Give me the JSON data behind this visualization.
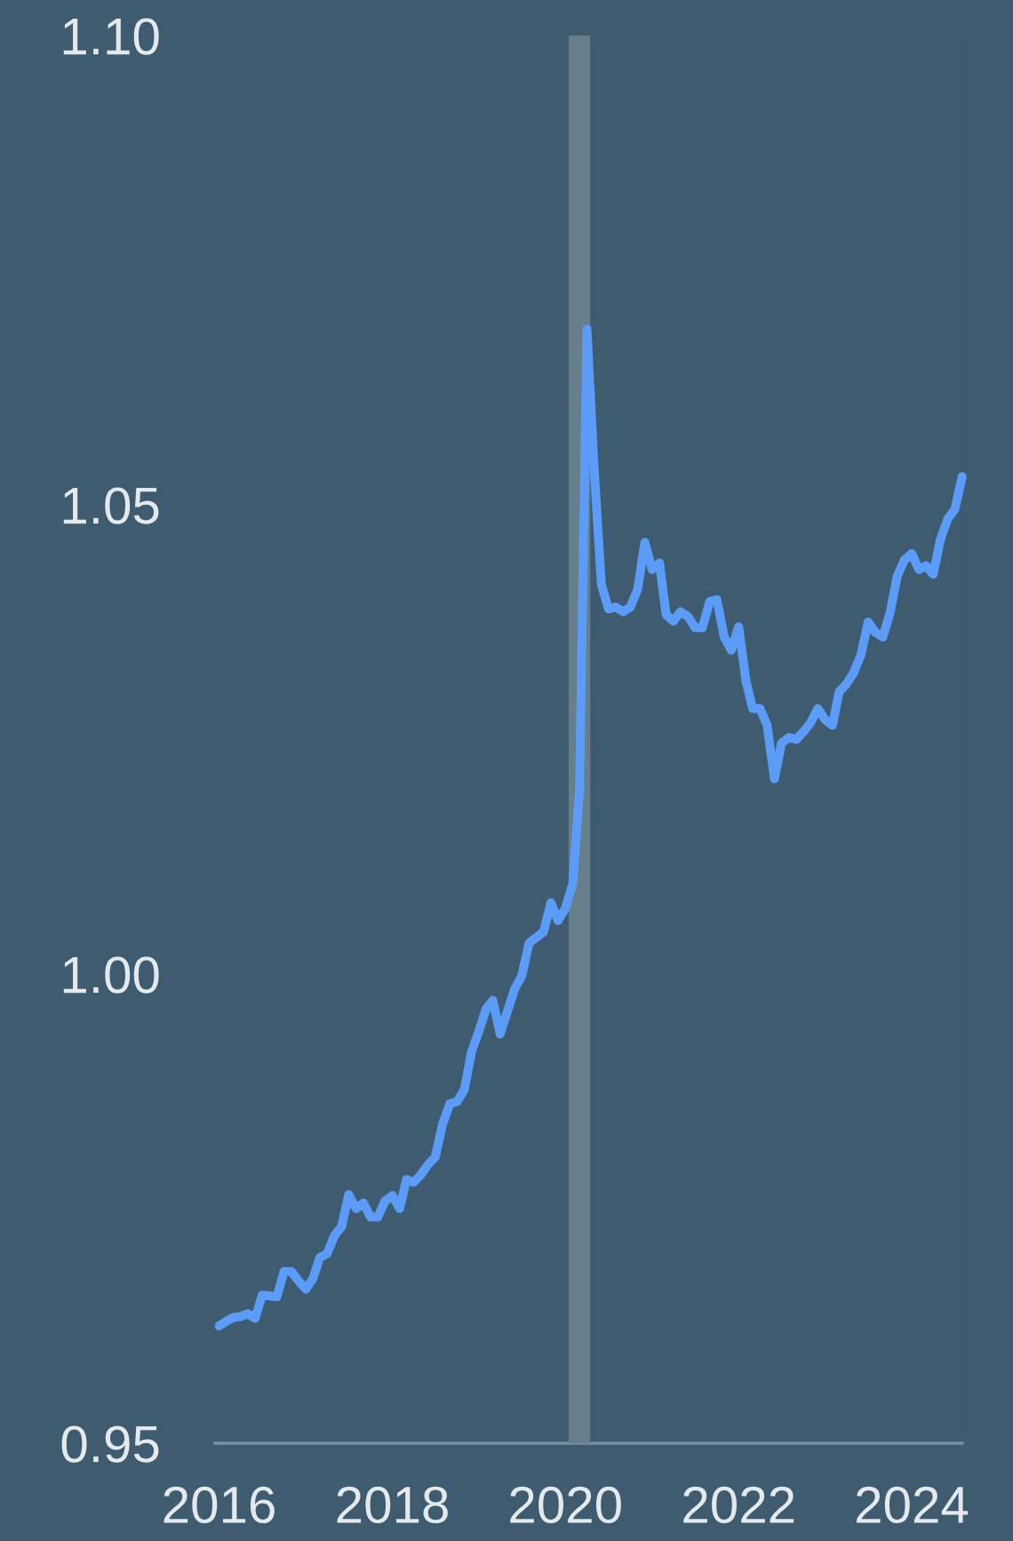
{
  "chart_data": {
    "type": "line",
    "x": [
      "2016-01",
      "2016-02",
      "2016-03",
      "2016-04",
      "2016-05",
      "2016-06",
      "2016-07",
      "2016-08",
      "2016-09",
      "2016-10",
      "2016-11",
      "2016-12",
      "2017-01",
      "2017-02",
      "2017-03",
      "2017-04",
      "2017-05",
      "2017-06",
      "2017-07",
      "2017-08",
      "2017-09",
      "2017-10",
      "2017-11",
      "2017-12",
      "2018-01",
      "2018-02",
      "2018-03",
      "2018-04",
      "2018-05",
      "2018-06",
      "2018-07",
      "2018-08",
      "2018-09",
      "2018-10",
      "2018-11",
      "2018-12",
      "2019-01",
      "2019-02",
      "2019-03",
      "2019-04",
      "2019-05",
      "2019-06",
      "2019-07",
      "2019-08",
      "2019-09",
      "2019-10",
      "2019-11",
      "2019-12",
      "2020-01",
      "2020-02",
      "2020-03",
      "2020-04",
      "2020-05",
      "2020-06",
      "2020-07",
      "2020-08",
      "2020-09",
      "2020-10",
      "2020-11",
      "2020-12",
      "2021-01",
      "2021-02",
      "2021-03",
      "2021-04",
      "2021-05",
      "2021-06",
      "2021-07",
      "2021-08",
      "2021-09",
      "2021-10",
      "2021-11",
      "2021-12",
      "2022-01",
      "2022-02",
      "2022-03",
      "2022-04",
      "2022-05",
      "2022-06",
      "2022-07",
      "2022-08",
      "2022-09",
      "2022-10",
      "2022-11",
      "2022-12",
      "2023-01",
      "2023-02",
      "2023-03",
      "2023-04",
      "2023-05",
      "2023-06",
      "2023-07",
      "2023-08",
      "2023-09",
      "2023-10",
      "2023-11",
      "2023-12",
      "2024-01",
      "2024-02",
      "2024-03",
      "2024-04",
      "2024-05",
      "2024-06",
      "2024-07",
      "2024-08"
    ],
    "series": [
      {
        "color": "#5b9cf9",
        "values": [
          0.9625,
          0.963,
          0.9634,
          0.9635,
          0.9638,
          0.9633,
          0.9658,
          0.9657,
          0.9656,
          0.9683,
          0.9683,
          0.9673,
          0.9664,
          0.9676,
          0.9698,
          0.9702,
          0.9721,
          0.9731,
          0.9765,
          0.975,
          0.9756,
          0.9741,
          0.9741,
          0.9758,
          0.9764,
          0.975,
          0.9781,
          0.9778,
          0.9786,
          0.9797,
          0.9805,
          0.984,
          0.9862,
          0.9864,
          0.9877,
          0.9917,
          0.9939,
          0.9963,
          0.9972,
          0.9936,
          0.996,
          0.9984,
          0.9998,
          1.0033,
          1.0039,
          1.0045,
          1.0076,
          1.0057,
          1.007,
          1.0096,
          1.0198,
          1.0687,
          1.054,
          1.0415,
          1.0389,
          1.0391,
          1.0386,
          1.0391,
          1.041,
          1.046,
          1.0431,
          1.0438,
          1.0383,
          1.0376,
          1.0386,
          1.0381,
          1.0369,
          1.0369,
          1.0397,
          1.0399,
          1.0359,
          1.0345,
          1.037,
          1.0312,
          1.0283,
          1.0283,
          1.0265,
          1.0208,
          1.0246,
          1.0252,
          1.025,
          1.0258,
          1.0268,
          1.0283,
          1.0271,
          1.0265,
          1.0301,
          1.0309,
          1.0321,
          1.034,
          1.0375,
          1.0364,
          1.0359,
          1.0384,
          1.0424,
          1.0441,
          1.0448,
          1.0431,
          1.0435,
          1.0426,
          1.0463,
          1.0485,
          1.0495,
          1.053
        ]
      }
    ],
    "xlim": [
      "2015-12-15",
      "2024-08-01"
    ],
    "xticks": [
      {
        "value": "2016-01-01",
        "label": "2016"
      },
      {
        "value": "2018-01-01",
        "label": "2018"
      },
      {
        "value": "2020-01-01",
        "label": "2020"
      },
      {
        "value": "2022-01-01",
        "label": "2022"
      },
      {
        "value": "2024-01-01",
        "label": "2024"
      }
    ],
    "ylim": [
      0.95,
      1.1
    ],
    "yticks": [
      {
        "value": 0.95,
        "label": "0.95"
      },
      {
        "value": 1.0,
        "label": "1.00"
      },
      {
        "value": 1.05,
        "label": "1.05"
      },
      {
        "value": 1.1,
        "label": "1.10"
      }
    ],
    "bands": [
      {
        "axis": "x",
        "from": "2020-01-15",
        "to": "2020-04-15",
        "color": "#677e8b"
      }
    ]
  }
}
